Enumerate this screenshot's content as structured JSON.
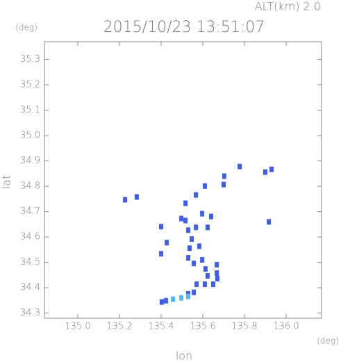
{
  "chart_data": {
    "type": "scatter",
    "title": "2015/10/23 13:51:07",
    "subtitle": "ALT(km) 2.0",
    "x_label": "lon",
    "x_unit": "(deg)",
    "y_label": "lat",
    "y_unit": "(deg)",
    "xlim": [
      134.84,
      136.17
    ],
    "ylim": [
      34.28,
      35.37
    ],
    "xticks": [
      {
        "value": 135,
        "label": "135.0"
      },
      135.2,
      135.4,
      135.6,
      135.8,
      {
        "value": 136,
        "label": "136.0"
      }
    ],
    "yticks": [
      34.3,
      34.4,
      34.5,
      34.6,
      34.7,
      34.8,
      34.9,
      {
        "value": 35,
        "label": "35.0"
      },
      35.1,
      35.2,
      35.3
    ],
    "series": [
      {
        "color": "#3f5fe8",
        "x": [
          135.227,
          135.283,
          135.777,
          135.9,
          135.93,
          135.703,
          135.7,
          135.61,
          135.567,
          135.517,
          135.497,
          135.517,
          135.597,
          135.64,
          135.4,
          135.917,
          135.53,
          135.567,
          135.623,
          135.547,
          135.583,
          135.537,
          135.53,
          135.557,
          135.597,
          135.427,
          135.4,
          135.613,
          135.667,
          135.667,
          135.623,
          135.61,
          135.65,
          135.67,
          135.57,
          135.557,
          135.53,
          135.423,
          135.403
        ],
        "values": [
          34.747,
          34.758,
          34.878,
          34.856,
          34.867,
          34.84,
          34.807,
          34.801,
          34.766,
          34.733,
          34.673,
          34.665,
          34.692,
          34.681,
          34.641,
          34.66,
          34.627,
          34.638,
          34.638,
          34.592,
          34.564,
          34.556,
          34.518,
          34.496,
          34.51,
          34.578,
          34.534,
          34.474,
          34.491,
          34.458,
          34.447,
          34.414,
          34.414,
          34.436,
          34.414,
          34.382,
          34.376,
          34.349,
          34.344
        ]
      },
      {
        "color": "#57b8f0",
        "x": [
          135.457,
          135.497,
          135.53
        ],
        "values": [
          34.355,
          34.36,
          34.366
        ]
      }
    ]
  }
}
